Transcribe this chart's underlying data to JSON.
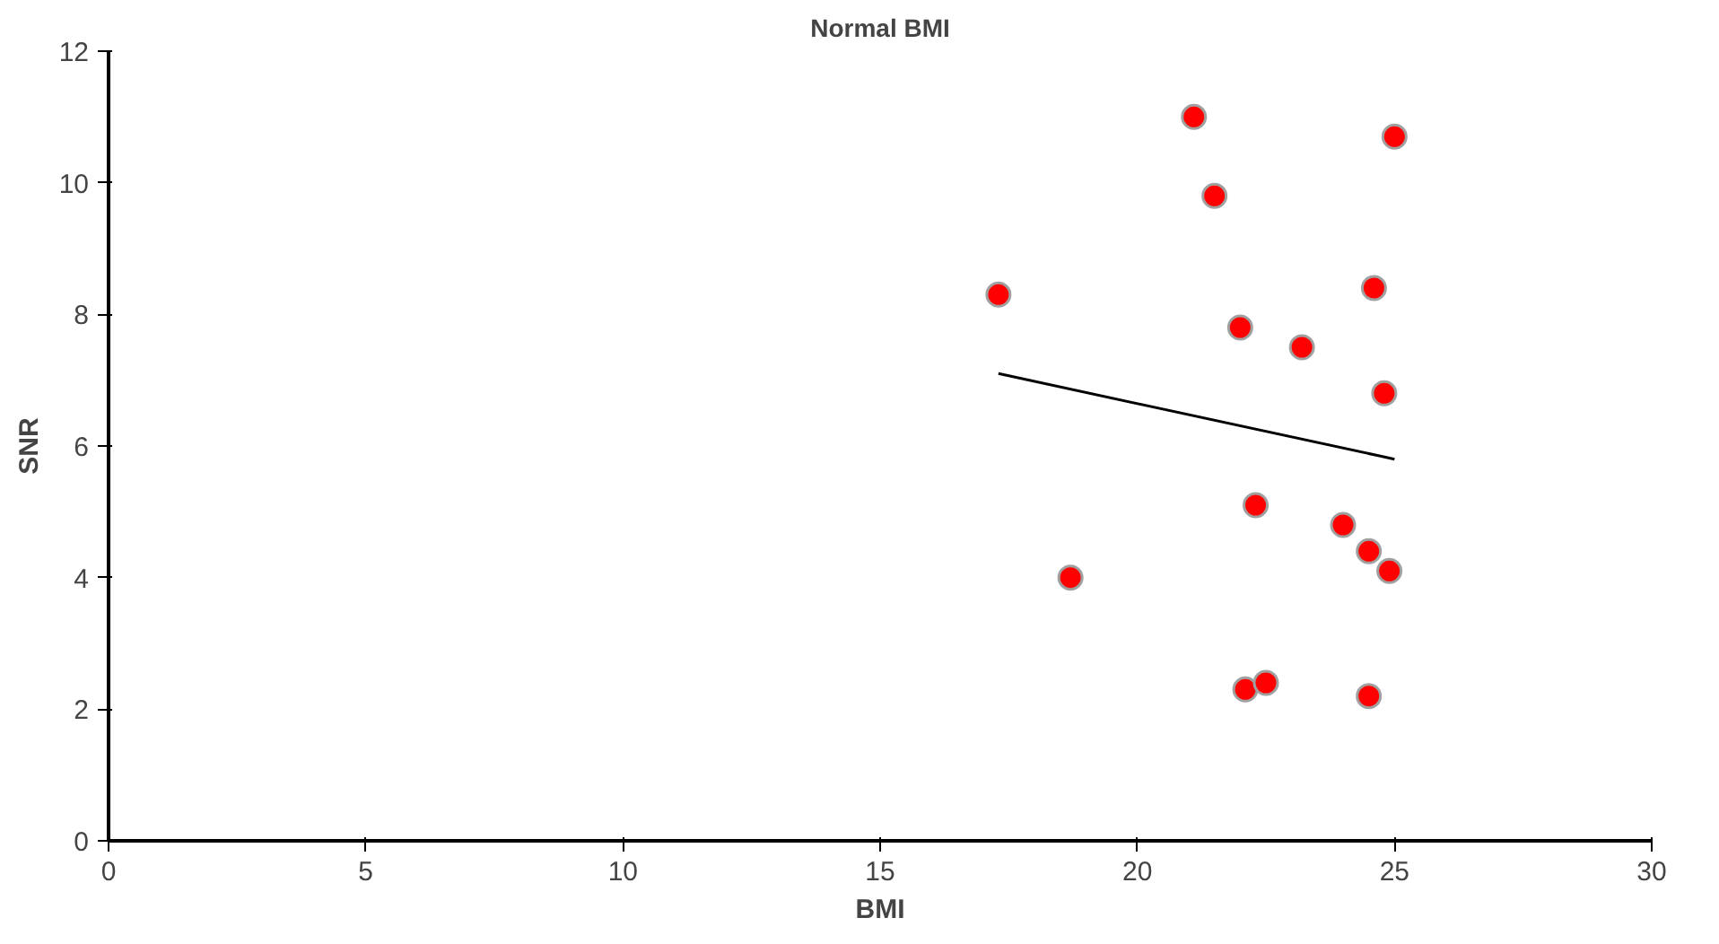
{
  "chart_data": {
    "type": "scatter",
    "title": "Normal BMI",
    "xlabel": "BMI",
    "ylabel": "SNR",
    "xlim": [
      0,
      30
    ],
    "xticks": [
      0,
      5,
      10,
      15,
      20,
      25,
      30
    ],
    "ylim": [
      0,
      12
    ],
    "yticks": [
      0,
      2,
      4,
      6,
      8,
      10,
      12
    ],
    "grid": false,
    "series": [
      {
        "marker": "circle",
        "color": "#ff0000",
        "x": [
          17.3,
          18.7,
          21.1,
          21.5,
          22.0,
          22.1,
          22.3,
          22.5,
          23.2,
          24.0,
          24.5,
          24.5,
          24.6,
          24.8,
          24.9,
          25.0
        ],
        "values": [
          8.3,
          4.0,
          11.0,
          9.8,
          7.8,
          2.3,
          5.1,
          2.4,
          7.5,
          4.8,
          4.4,
          2.2,
          8.4,
          6.8,
          4.1,
          10.7
        ]
      },
      {
        "type": "line",
        "color": "#000000",
        "x": [
          17.3,
          25.0
        ],
        "values": [
          7.1,
          5.8
        ]
      }
    ]
  }
}
